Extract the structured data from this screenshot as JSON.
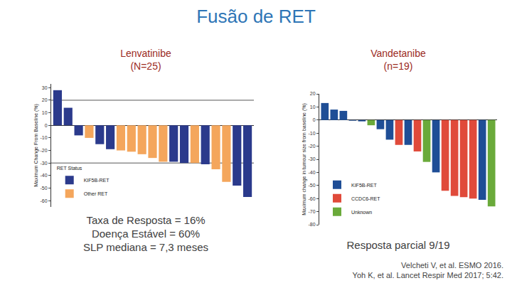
{
  "title": "Fusão de RET",
  "references": [
    "Velcheti V, et al. ESMO 2016.",
    "Yoh K, et al. Lancet Respir Med 2017; 5:42."
  ],
  "chart_data": [
    {
      "type": "bar",
      "title": [
        "Lenvatinibe",
        "(N=25)"
      ],
      "y_label": "Maximum Change From Baseline (%)",
      "categories": [
        null,
        null,
        null,
        null,
        null,
        null,
        null,
        null,
        null,
        null,
        null,
        null,
        null,
        null,
        null,
        null,
        null,
        null,
        null
      ],
      "series": [
        {
          "name": "KIF5B-RET",
          "color": "#2b3a8c",
          "values": [
            28,
            14,
            -8,
            null,
            -15,
            -19,
            null,
            null,
            null,
            null,
            null,
            -29,
            -30,
            null,
            -31,
            null,
            null,
            -48,
            -57
          ]
        },
        {
          "name": "Other RET",
          "color": "#f4a65c",
          "values": [
            null,
            null,
            null,
            -10,
            null,
            null,
            -20,
            -21,
            -23,
            -26,
            -29,
            null,
            null,
            -30,
            null,
            -35,
            -45,
            null,
            null
          ]
        }
      ],
      "legend_title": "RET Status",
      "legend": "lower left",
      "ylim": [
        -65,
        33
      ],
      "yticks": [
        30,
        20,
        10,
        0,
        -10,
        -20,
        -30,
        -40,
        -50,
        -60
      ],
      "reference_lines": [
        20,
        -30
      ],
      "grid": false,
      "tick_labels": "y",
      "notes": [
        "Taxa de Resposta = 16%",
        "Doença Estável = 60%",
        "SLP mediana = 7,3 meses"
      ]
    },
    {
      "type": "bar",
      "title": [
        "Vandetanibe",
        "(n=19)"
      ],
      "y_label": "Maximum change in tumour size from baseline (%)",
      "categories": [
        null,
        null,
        null,
        null,
        null,
        null,
        null,
        null,
        null,
        null,
        null,
        null,
        null,
        null,
        null,
        null,
        null,
        null,
        null
      ],
      "series": [
        {
          "name": "KIF5B-RET",
          "color": "#1f4e96",
          "values": [
            13,
            8,
            7,
            -0.5,
            -1,
            null,
            -7,
            -15,
            null,
            -19,
            null,
            null,
            -40,
            null,
            null,
            null,
            null,
            -61,
            null
          ]
        },
        {
          "name": "CCDC6-RET",
          "color": "#e04a3a",
          "values": [
            null,
            null,
            null,
            null,
            null,
            null,
            null,
            null,
            -19,
            null,
            -24,
            null,
            null,
            -54,
            -58,
            -59,
            -60,
            null,
            null
          ]
        },
        {
          "name": "Unknown",
          "color": "#6aaa3a",
          "values": [
            null,
            null,
            null,
            null,
            null,
            -4,
            null,
            null,
            null,
            null,
            null,
            -32,
            null,
            null,
            null,
            null,
            null,
            null,
            -66
          ]
        }
      ],
      "legend": "lower left",
      "ylim": [
        -80,
        20
      ],
      "yticks": [
        20,
        10,
        0,
        -10,
        -20,
        -30,
        -40,
        -50,
        -60,
        -70,
        -80
      ],
      "grid": false,
      "tick_labels": "y",
      "notes": [
        "Resposta parcial 9/19"
      ]
    }
  ]
}
